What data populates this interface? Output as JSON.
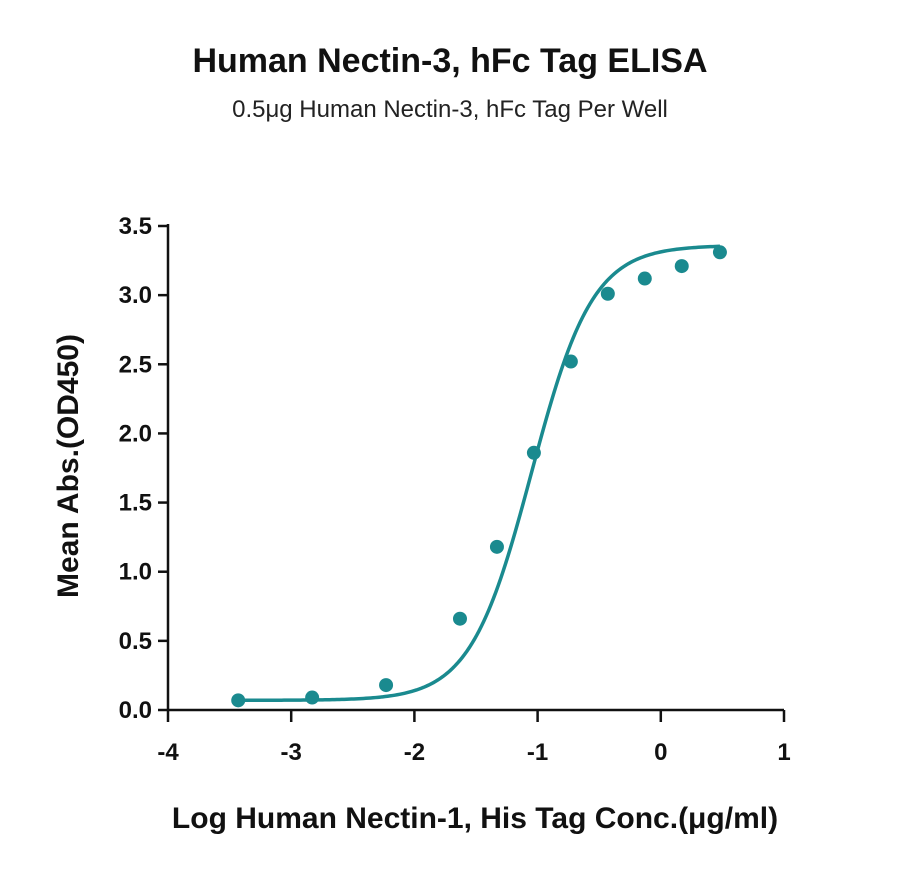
{
  "chart_data": {
    "type": "scatter",
    "title": "Human Nectin-3, hFc Tag ELISA",
    "subtitle": "0.5μg Human Nectin-3, hFc Tag Per Well",
    "xlabel": "Log Human Nectin-1, His Tag Conc.(μg/ml)",
    "ylabel": "Mean Abs.(OD450)",
    "xlim": [
      -4,
      1
    ],
    "ylim": [
      0,
      3.5
    ],
    "x_ticks": [
      "-4",
      "-3",
      "-2",
      "-1",
      "0",
      "1"
    ],
    "y_ticks": [
      "0.0",
      "0.5",
      "1.0",
      "1.5",
      "2.0",
      "2.5",
      "3.0",
      "3.5"
    ],
    "color": "#1a8a8f",
    "fit": "4PL sigmoid curve",
    "series": [
      {
        "x": [
          -3.43,
          -2.83,
          -2.23,
          -1.63,
          -1.33,
          -1.03,
          -0.73,
          -0.43,
          -0.13,
          0.17,
          0.48
        ],
        "y": [
          0.07,
          0.09,
          0.18,
          0.66,
          1.18,
          1.86,
          2.52,
          3.01,
          3.12,
          3.21,
          3.31
        ]
      }
    ]
  }
}
